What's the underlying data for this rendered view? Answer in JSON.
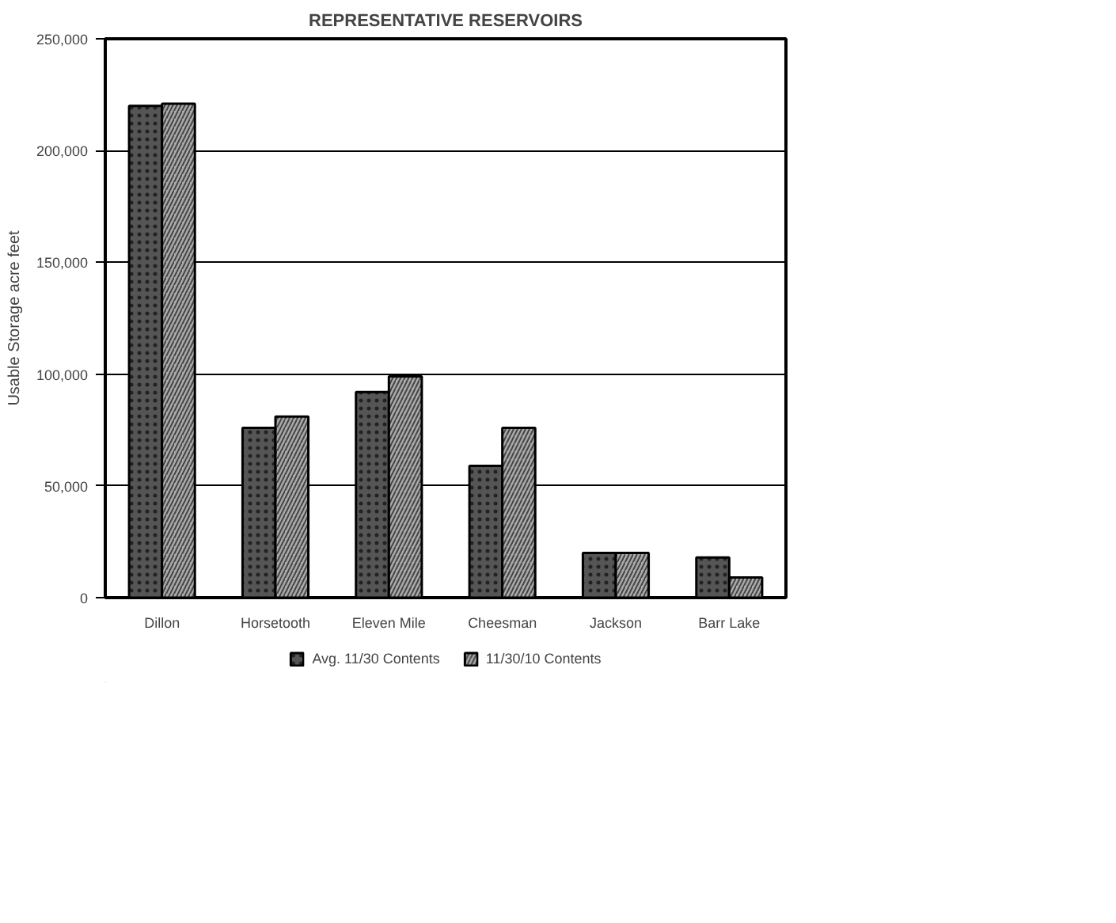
{
  "chart_data": {
    "type": "bar",
    "title": "REPRESENTATIVE RESERVOIRS",
    "ylabel": "Usable Storage acre feet",
    "categories": [
      "Dillon",
      "Horsetooth",
      "Eleven Mile",
      "Cheesman",
      "Jackson",
      "Barr Lake"
    ],
    "series": [
      {
        "name": "Avg. 11/30 Contents",
        "color": "#555555",
        "values": [
          220000,
          76000,
          92000,
          59000,
          20000,
          18000
        ]
      },
      {
        "name": "11/30/10 Contents",
        "color": "#aaaaaa",
        "values": [
          221000,
          81000,
          99000,
          76000,
          20000,
          9000
        ]
      }
    ],
    "ylim": [
      0,
      250000
    ],
    "yticks": [
      {
        "value": 0,
        "label": "0"
      },
      {
        "value": 50000,
        "label": "50,000"
      },
      {
        "value": 100000,
        "label": "100,000"
      },
      {
        "value": 150000,
        "label": "150,000"
      },
      {
        "value": 200000,
        "label": "200,000"
      },
      {
        "value": 250000,
        "label": "250,000"
      }
    ],
    "grid": "y",
    "legend": "bottom"
  }
}
